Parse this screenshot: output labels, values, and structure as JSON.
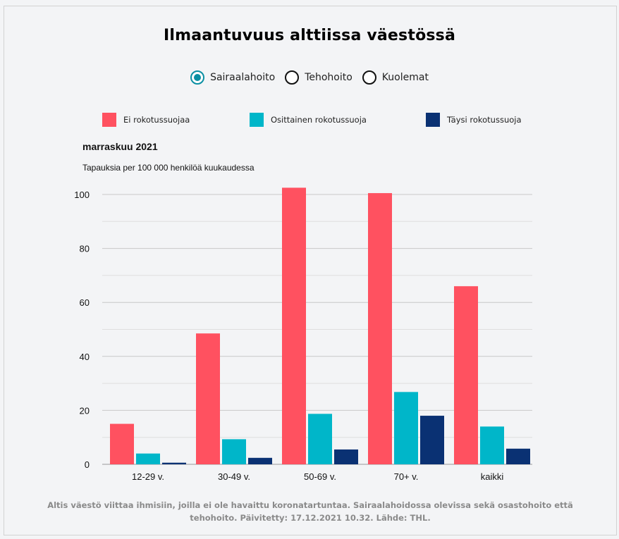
{
  "title": "Ilmaantuvuus alttiissa väestössä",
  "radio_options": [
    {
      "label": "Sairaalahoito",
      "selected": true
    },
    {
      "label": "Tehohoito",
      "selected": false
    },
    {
      "label": "Kuolemat",
      "selected": false
    }
  ],
  "footnote": "Altis väestö viittaa ihmisiin, joilla ei ole havaittu koronatartuntaa. Sairaalahoidossa olevissa sekä osastohoito että tehohoito. Päivitetty: 17.12.2021 10.32. Lähde: THL.",
  "colors": {
    "unvaccinated": "#ff5160",
    "partial": "#00b6c9",
    "full": "#0a3173",
    "grid": "#c8c8c8"
  },
  "chart_data": {
    "type": "bar",
    "title": "marraskuu 2021",
    "subtitle": "Tapauksia per 100 000 henkilöä kuukaudessa",
    "xlabel": "",
    "ylabel": "",
    "ylim": [
      0,
      100
    ],
    "yticks": [
      0,
      20,
      40,
      60,
      80,
      100
    ],
    "categories": [
      "12-29 v.",
      "30-49 v.",
      "50-69 v.",
      "70+ v.",
      "kaikki"
    ],
    "series": [
      {
        "name": "Ei rokotussuojaa",
        "values": [
          15,
          48.5,
          102.5,
          100.5,
          66
        ]
      },
      {
        "name": "Osittainen rokotussuoja",
        "values": [
          4,
          9.3,
          18.7,
          26.8,
          14
        ]
      },
      {
        "name": "Täysi rokotussuoja",
        "values": [
          0.6,
          2.4,
          5.5,
          18,
          5.8
        ]
      }
    ],
    "legend_position": "top"
  }
}
